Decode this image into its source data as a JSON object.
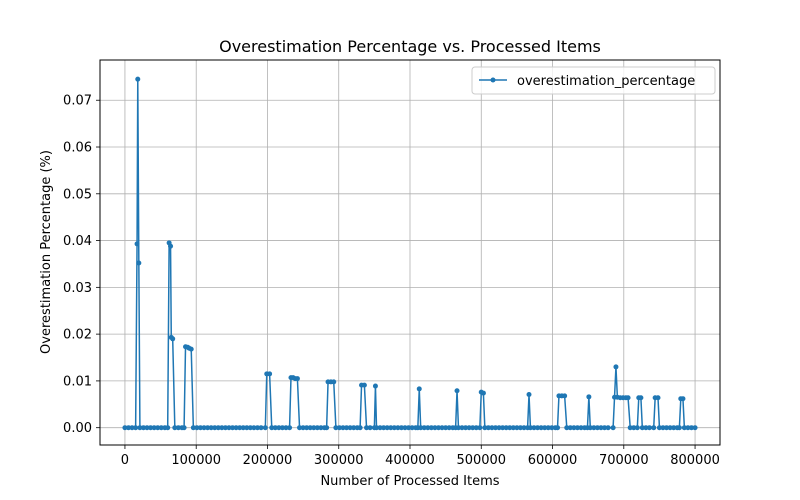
{
  "chart_data": {
    "type": "line",
    "title": "Overestimation Percentage vs. Processed Items",
    "xlabel": "Number of Processed Items",
    "ylabel": "Overestimation Percentage (%)",
    "xlim": [
      -35000,
      835000
    ],
    "ylim": [
      -0.0037,
      0.0786
    ],
    "xticks": [
      0,
      100000,
      200000,
      300000,
      400000,
      500000,
      600000,
      700000,
      800000
    ],
    "xtick_labels": [
      "0",
      "100000",
      "200000",
      "300000",
      "400000",
      "500000",
      "600000",
      "700000",
      "800000"
    ],
    "yticks": [
      0.0,
      0.01,
      0.02,
      0.03,
      0.04,
      0.05,
      0.06,
      0.07
    ],
    "ytick_labels": [
      "0.00",
      "0.01",
      "0.02",
      "0.03",
      "0.04",
      "0.05",
      "0.06",
      "0.07"
    ],
    "grid": true,
    "legend_position": "top-right",
    "colors": {
      "series": "#1f77b4"
    },
    "series": [
      {
        "name": "overestimation_percentage",
        "points": [
          [
            0,
            0
          ],
          [
            15000,
            0
          ],
          [
            17000,
            0.0393
          ],
          [
            18000,
            0.0745
          ],
          [
            19500,
            0.0352
          ],
          [
            21000,
            0
          ],
          [
            60000,
            0
          ],
          [
            62000,
            0.0395
          ],
          [
            64000,
            0.0388
          ],
          [
            65000,
            0.0193
          ],
          [
            67000,
            0.019
          ],
          [
            70000,
            0
          ],
          [
            83000,
            0
          ],
          [
            85000,
            0.0173
          ],
          [
            88000,
            0.0172
          ],
          [
            90000,
            0.017
          ],
          [
            93000,
            0.0168
          ],
          [
            96000,
            0
          ],
          [
            197000,
            0
          ],
          [
            199000,
            0.0115
          ],
          [
            203000,
            0.0115
          ],
          [
            206000,
            0
          ],
          [
            231000,
            0
          ],
          [
            233000,
            0.0107
          ],
          [
            236000,
            0.0107
          ],
          [
            239000,
            0.0105
          ],
          [
            242000,
            0.0105
          ],
          [
            245000,
            0
          ],
          [
            283000,
            0
          ],
          [
            285000,
            0.0098
          ],
          [
            289000,
            0.0098
          ],
          [
            293000,
            0.0098
          ],
          [
            296000,
            0
          ],
          [
            330000,
            0
          ],
          [
            332000,
            0.0091
          ],
          [
            336000,
            0.0091
          ],
          [
            339000,
            0
          ],
          [
            350000,
            0
          ],
          [
            351500,
            0.0089
          ],
          [
            353000,
            0
          ],
          [
            411000,
            0
          ],
          [
            413000,
            0.0083
          ],
          [
            415000,
            0
          ],
          [
            464000,
            0
          ],
          [
            466000,
            0.0079
          ],
          [
            468000,
            0
          ],
          [
            498000,
            0
          ],
          [
            500000,
            0.0076
          ],
          [
            503000,
            0.0074
          ],
          [
            505000,
            0
          ],
          [
            565000,
            0
          ],
          [
            567000,
            0.0071
          ],
          [
            569000,
            0
          ],
          [
            607000,
            0
          ],
          [
            609000,
            0.0068
          ],
          [
            613000,
            0.0068
          ],
          [
            617000,
            0.0068
          ],
          [
            620000,
            0
          ],
          [
            649000,
            0
          ],
          [
            651000,
            0.0066
          ],
          [
            653000,
            0
          ],
          [
            685000,
            0
          ],
          [
            687000,
            0.0065
          ],
          [
            689000,
            0.013
          ],
          [
            691000,
            0.0065
          ],
          [
            695000,
            0.0064
          ],
          [
            699000,
            0.0064
          ],
          [
            703000,
            0.0064
          ],
          [
            706000,
            0.0064
          ],
          [
            709000,
            0
          ],
          [
            719000,
            0
          ],
          [
            721000,
            0.0064
          ],
          [
            724000,
            0.0064
          ],
          [
            726000,
            0
          ],
          [
            742000,
            0
          ],
          [
            744000,
            0.0064
          ],
          [
            748000,
            0.0064
          ],
          [
            750000,
            0
          ],
          [
            778000,
            0
          ],
          [
            780000,
            0.0062
          ],
          [
            783000,
            0.0062
          ],
          [
            785000,
            0
          ],
          [
            800000,
            0
          ]
        ]
      }
    ]
  }
}
